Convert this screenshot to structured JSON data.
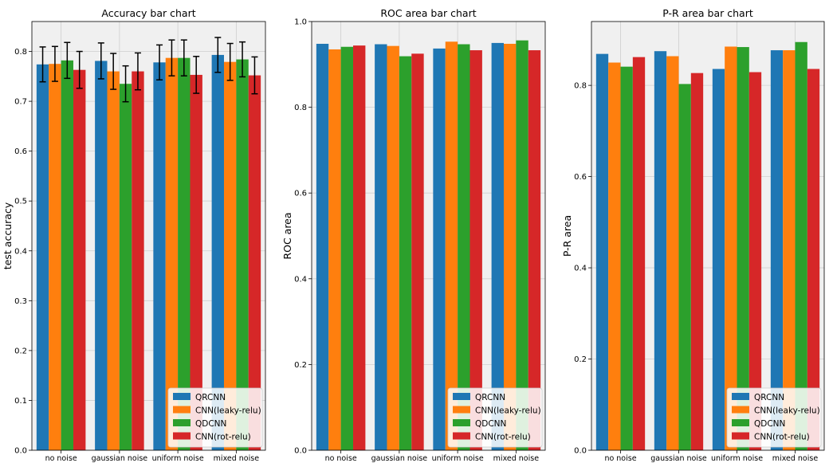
{
  "figure_title_note": "",
  "legend_labels": [
    "QRCNN",
    "CNN(leaky-relu)",
    "QDCNN",
    "CNN(rot-relu)"
  ],
  "colors": {
    "QRCNN": "#1f77b4",
    "CNN(leaky-relu)": "#ff7f0e",
    "QDCNN": "#2ca02c",
    "CNN(rot-relu)": "#d62728",
    "plot_background": "#f0f0f0",
    "grid": "#cfcfcf"
  },
  "chart_data": [
    {
      "type": "bar",
      "title": "Accuracy bar chart",
      "xlabel": "",
      "ylabel": "test accuracy",
      "ylim": [
        0,
        0.86
      ],
      "yticks": [
        0.0,
        0.1,
        0.2,
        0.3,
        0.4,
        0.5,
        0.6,
        0.7,
        0.8
      ],
      "ytick_labels": [
        "0.0",
        "0.1",
        "0.2",
        "0.3",
        "0.4",
        "0.5",
        "0.6",
        "0.7",
        "0.8"
      ],
      "categories": [
        "no noise",
        "gaussian noise",
        "uniform noise",
        "mixed noise"
      ],
      "grid": true,
      "legend_position": "lower-right",
      "series": [
        {
          "name": "QRCNN",
          "values": [
            0.774,
            0.781,
            0.778,
            0.793
          ],
          "errors": [
            0.035,
            0.036,
            0.035,
            0.035
          ]
        },
        {
          "name": "CNN(leaky-relu)",
          "values": [
            0.775,
            0.76,
            0.787,
            0.779
          ],
          "errors": [
            0.035,
            0.036,
            0.036,
            0.037
          ]
        },
        {
          "name": "QDCNN",
          "values": [
            0.782,
            0.735,
            0.787,
            0.784
          ],
          "errors": [
            0.036,
            0.036,
            0.036,
            0.035
          ]
        },
        {
          "name": "CNN(rot-relu)",
          "values": [
            0.763,
            0.76,
            0.753,
            0.752
          ],
          "errors": [
            0.037,
            0.037,
            0.037,
            0.037
          ]
        }
      ]
    },
    {
      "type": "bar",
      "title": "ROC area bar chart",
      "xlabel": "",
      "ylabel": "ROC area",
      "ylim": [
        0,
        1.0
      ],
      "yticks": [
        0.0,
        0.2,
        0.4,
        0.6,
        0.8,
        1.0
      ],
      "ytick_labels": [
        "0.0",
        "0.2",
        "0.4",
        "0.6",
        "0.8",
        "1.0"
      ],
      "categories": [
        "no noise",
        "gaussian noise",
        "uniform noise",
        "mixed noise"
      ],
      "grid": true,
      "legend_position": "lower-right",
      "series": [
        {
          "name": "QRCNN",
          "values": [
            0.948,
            0.947,
            0.937,
            0.95
          ]
        },
        {
          "name": "CNN(leaky-relu)",
          "values": [
            0.935,
            0.943,
            0.953,
            0.948
          ]
        },
        {
          "name": "QDCNN",
          "values": [
            0.941,
            0.919,
            0.947,
            0.956
          ]
        },
        {
          "name": "CNN(rot-relu)",
          "values": [
            0.944,
            0.925,
            0.933,
            0.933
          ]
        }
      ]
    },
    {
      "type": "bar",
      "title": "P-R area bar chart",
      "xlabel": "",
      "ylabel": "P-R area",
      "ylim": [
        0,
        0.94
      ],
      "yticks": [
        0.0,
        0.2,
        0.4,
        0.6,
        0.8
      ],
      "ytick_labels": [
        "0.0",
        "0.2",
        "0.4",
        "0.6",
        "0.8"
      ],
      "categories": [
        "no noise",
        "gaussian noise",
        "uniform noise",
        "mixed noise"
      ],
      "grid": true,
      "legend_position": "lower-right",
      "series": [
        {
          "name": "QRCNN",
          "values": [
            0.869,
            0.875,
            0.836,
            0.877
          ]
        },
        {
          "name": "CNN(leaky-relu)",
          "values": [
            0.85,
            0.864,
            0.885,
            0.877
          ]
        },
        {
          "name": "QDCNN",
          "values": [
            0.841,
            0.803,
            0.884,
            0.895
          ]
        },
        {
          "name": "CNN(rot-relu)",
          "values": [
            0.862,
            0.827,
            0.829,
            0.836
          ]
        }
      ]
    }
  ]
}
